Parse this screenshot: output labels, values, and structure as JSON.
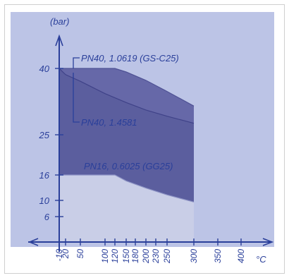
{
  "chart_data": {
    "type": "area",
    "y_unit": "(bar)",
    "x_unit": "°C",
    "x_ticks": [
      "-10",
      "20",
      "50",
      "100",
      "120",
      "150",
      "180",
      "200",
      "230",
      "250",
      "300",
      "350",
      "400"
    ],
    "y_ticks": [
      "6",
      "10",
      "16",
      "25",
      "40"
    ],
    "xlim": [
      -10,
      300
    ],
    "ylim": [
      0,
      40
    ],
    "series": [
      {
        "name": "PN40, 1.0619 (GS-C25)",
        "x": [
          -10,
          120,
          150,
          200,
          250,
          300
        ],
        "y": [
          40,
          40,
          39.2,
          37.3,
          34.8,
          31.5
        ]
      },
      {
        "name": "PN40, 1.4581",
        "x": [
          -10,
          20,
          50,
          100,
          150,
          200,
          250,
          300
        ],
        "y": [
          40,
          38.6,
          37.1,
          34.3,
          32.3,
          30.6,
          29.2,
          27.6
        ]
      },
      {
        "name": "PN16, 0.6025 (GG25)",
        "x": [
          -10,
          120,
          150,
          200,
          250,
          300
        ],
        "y": [
          16,
          16,
          14.6,
          12.9,
          11.3,
          9.6
        ]
      }
    ],
    "colors": {
      "frame_background": "#bcc4e6",
      "upper_area": "#6668a8",
      "middle_area": "#5b5e9e",
      "lower_area": "#c9cee7",
      "axis": "#2a3f9a",
      "text": "#2a3f9a"
    }
  }
}
